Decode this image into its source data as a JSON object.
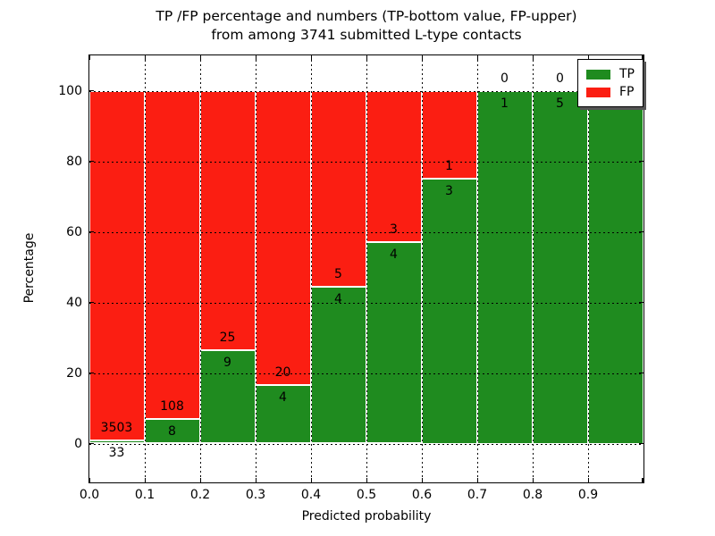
{
  "figure": {
    "title_line1": "TP /FP percentage and numbers (TP-bottom value, FP-upper)",
    "title_line2": "from among 3741 submitted L-type contacts"
  },
  "axes": {
    "xlabel": "Predicted probability",
    "ylabel": "Percentage",
    "x_tick_labels": [
      "0.0",
      "0.1",
      "0.2",
      "0.3",
      "0.4",
      "0.5",
      "0.6",
      "0.7",
      "0.8",
      "0.9"
    ],
    "y_tick_labels": [
      "0",
      "20",
      "40",
      "60",
      "80",
      "100"
    ],
    "y_tick_values": [
      0,
      20,
      40,
      60,
      80,
      100
    ],
    "xlim": [
      0.0,
      1.0
    ],
    "ylim": [
      -11,
      110
    ]
  },
  "legend": {
    "items": [
      {
        "name": "tp",
        "label": "TP",
        "color": "#1f8b1f"
      },
      {
        "name": "fp",
        "label": "FP",
        "color": "#fb1e12"
      }
    ]
  },
  "chart_data": {
    "type": "bar",
    "stacked": true,
    "title": "TP /FP percentage and numbers (TP-bottom value, FP-upper) from among 3741 submitted L-type contacts",
    "xlabel": "Predicted probability",
    "ylabel": "Percentage",
    "total_submitted": 3741,
    "bin_width": 0.1,
    "bin_starts": [
      0.0,
      0.1,
      0.2,
      0.3,
      0.4,
      0.5,
      0.6,
      0.7,
      0.8,
      0.9
    ],
    "series": [
      {
        "name": "TP",
        "color": "#1f8b1f",
        "counts": [
          33,
          8,
          9,
          4,
          4,
          4,
          3,
          1,
          5,
          5
        ]
      },
      {
        "name": "FP",
        "color": "#fb1e12",
        "counts": [
          3503,
          108,
          25,
          20,
          5,
          3,
          1,
          0,
          0,
          0
        ]
      }
    ],
    "tp_percentages": [
      0.93,
      6.9,
      26.47,
      16.67,
      44.44,
      57.14,
      75.0,
      100.0,
      100.0,
      100.0
    ],
    "grid": true,
    "grid_style": "dotted",
    "legend_position": "upper right"
  }
}
